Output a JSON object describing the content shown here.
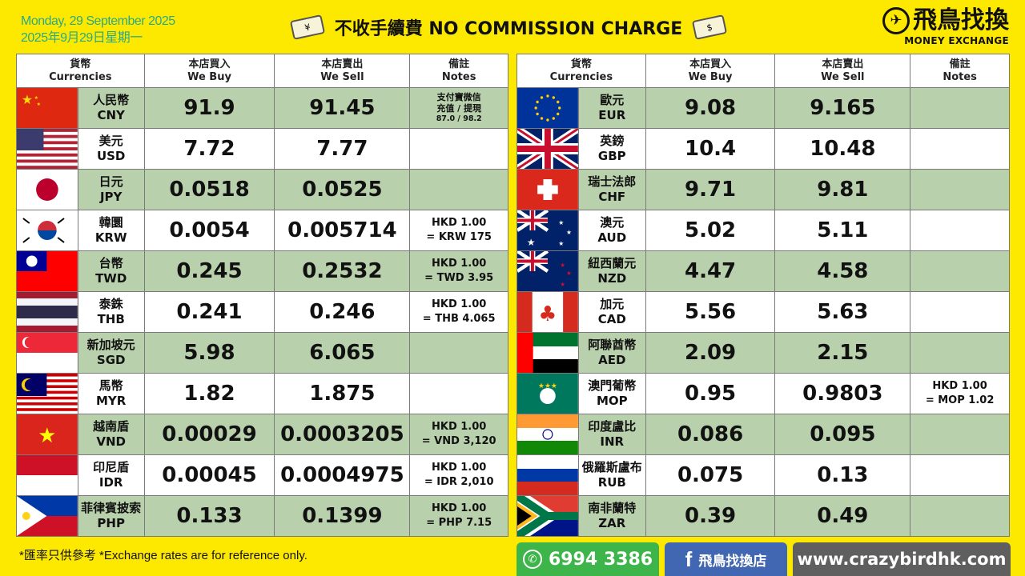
{
  "header": {
    "date_en": "Monday, 29 September 2025",
    "date_zh": "2025年9月29日星期一",
    "banner": "不收手續費 NO COMMISSION CHARGE",
    "logo_zh": "飛鳥找換",
    "logo_en": "MONEY EXCHANGE"
  },
  "columns": {
    "currency_zh": "貨幣",
    "currency_en": "Currencies",
    "buy_zh": "本店買入",
    "buy_en": "We Buy",
    "sell_zh": "本店賣出",
    "sell_en": "We Sell",
    "notes_zh": "備註",
    "notes_en": "Notes"
  },
  "left": [
    {
      "flag": "cn",
      "zh": "人民幣",
      "code": "CNY",
      "buy": "91.9",
      "sell": "91.45",
      "note1": "支付寶微信",
      "note2": "充值 / 提現",
      "note_small": "87.0 / 98.2"
    },
    {
      "flag": "us",
      "zh": "美元",
      "code": "USD",
      "buy": "7.72",
      "sell": "7.77"
    },
    {
      "flag": "jp",
      "zh": "日元",
      "code": "JPY",
      "buy": "0.0518",
      "sell": "0.0525"
    },
    {
      "flag": "kr",
      "zh": "韓圜",
      "code": "KRW",
      "buy": "0.0054",
      "sell": "0.005714",
      "note1": "HKD 1.00",
      "note2": "= KRW 175"
    },
    {
      "flag": "tw",
      "zh": "台幣",
      "code": "TWD",
      "buy": "0.245",
      "sell": "0.2532",
      "note1": "HKD 1.00",
      "note2": "= TWD 3.95"
    },
    {
      "flag": "th",
      "zh": "泰銖",
      "code": "THB",
      "buy": "0.241",
      "sell": "0.246",
      "note1": "HKD 1.00",
      "note2": "= THB 4.065"
    },
    {
      "flag": "sg",
      "zh": "新加坡元",
      "code": "SGD",
      "buy": "5.98",
      "sell": "6.065"
    },
    {
      "flag": "my",
      "zh": "馬幣",
      "code": "MYR",
      "buy": "1.82",
      "sell": "1.875"
    },
    {
      "flag": "vn",
      "zh": "越南盾",
      "code": "VND",
      "buy": "0.00029",
      "sell": "0.0003205",
      "note1": "HKD 1.00",
      "note2": "= VND 3,120"
    },
    {
      "flag": "id",
      "zh": "印尼盾",
      "code": "IDR",
      "buy": "0.00045",
      "sell": "0.0004975",
      "note1": "HKD 1.00",
      "note2": "= IDR 2,010"
    },
    {
      "flag": "ph",
      "zh": "菲律賓披索",
      "code": "PHP",
      "buy": "0.133",
      "sell": "0.1399",
      "note1": "HKD 1.00",
      "note2": "= PHP 7.15"
    }
  ],
  "right": [
    {
      "flag": "eu",
      "zh": "歐元",
      "code": "EUR",
      "buy": "9.08",
      "sell": "9.165"
    },
    {
      "flag": "gb",
      "zh": "英鎊",
      "code": "GBP",
      "buy": "10.4",
      "sell": "10.48"
    },
    {
      "flag": "ch",
      "zh": "瑞士法郎",
      "code": "CHF",
      "buy": "9.71",
      "sell": "9.81"
    },
    {
      "flag": "au",
      "zh": "澳元",
      "code": "AUD",
      "buy": "5.02",
      "sell": "5.11"
    },
    {
      "flag": "nz",
      "zh": "紐西蘭元",
      "code": "NZD",
      "buy": "4.47",
      "sell": "4.58"
    },
    {
      "flag": "ca",
      "zh": "加元",
      "code": "CAD",
      "buy": "5.56",
      "sell": "5.63"
    },
    {
      "flag": "ae",
      "zh": "阿聯酋幣",
      "code": "AED",
      "buy": "2.09",
      "sell": "2.15"
    },
    {
      "flag": "mo",
      "zh": "澳門葡幣",
      "code": "MOP",
      "buy": "0.95",
      "sell": "0.9803",
      "note1": "HKD 1.00",
      "note2": "= MOP 1.02"
    },
    {
      "flag": "in",
      "zh": "印度盧比",
      "code": "INR",
      "buy": "0.086",
      "sell": "0.095"
    },
    {
      "flag": "ru",
      "zh": "俄羅斯盧布",
      "code": "RUB",
      "buy": "0.075",
      "sell": "0.13"
    },
    {
      "flag": "za",
      "zh": "南非蘭特",
      "code": "ZAR",
      "buy": "0.39",
      "sell": "0.49"
    }
  ],
  "footer": {
    "disclaimer": "*匯率只供參考 *Exchange rates are for reference only.",
    "phone": "6994 3386",
    "facebook": "飛鳥找換店",
    "website": "www.crazybirdhk.com",
    "colors": {
      "whatsapp": "#3db54a",
      "facebook": "#4267b2",
      "website": "#5f5f5f"
    }
  }
}
